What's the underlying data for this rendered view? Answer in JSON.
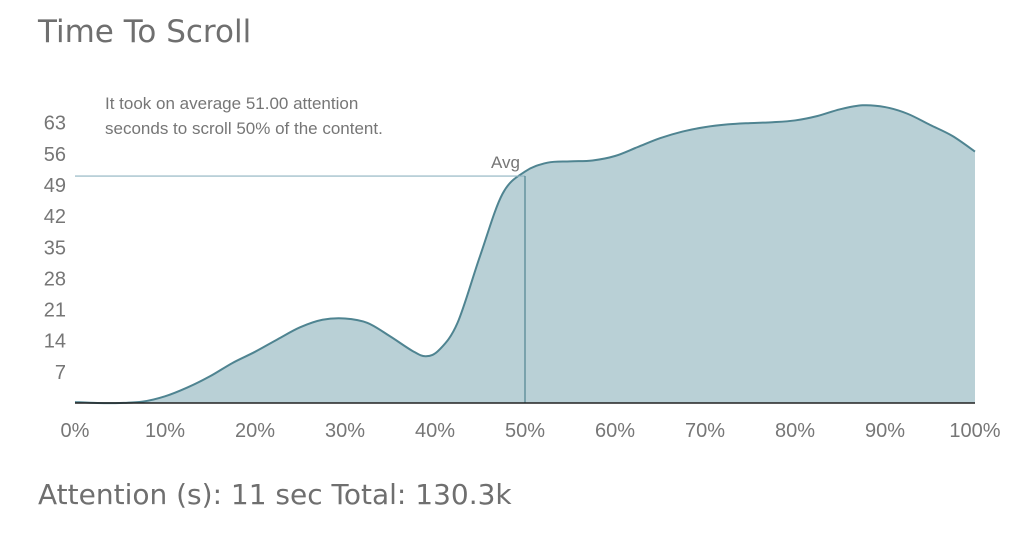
{
  "title": "Time To Scroll",
  "annotation": {
    "line1": "It took on average 51.00 attention",
    "line2": "seconds to scroll 50% of the content."
  },
  "avg_label": "Avg",
  "footer": "Attention (s): 11 sec Total: 130.3k",
  "colors": {
    "fill": "#b9d0d6",
    "line": "#4f8491",
    "avg_line": "#8fb3c1",
    "text": "#767676"
  },
  "chart_data": {
    "type": "area",
    "title": "Time To Scroll",
    "x_tick_labels": [
      "0%",
      "10%",
      "20%",
      "30%",
      "40%",
      "50%",
      "60%",
      "70%",
      "80%",
      "90%",
      "100%"
    ],
    "y_tick_labels": [
      "7",
      "14",
      "21",
      "28",
      "35",
      "42",
      "49",
      "56",
      "63"
    ],
    "y_ticks": [
      7,
      14,
      21,
      28,
      35,
      42,
      49,
      56,
      63
    ],
    "xlim": [
      0,
      100
    ],
    "ylim": [
      0,
      70
    ],
    "grid": false,
    "series": [
      {
        "x": [
          0,
          2.5,
          5,
          7.5,
          10,
          12.5,
          15,
          17.5,
          20,
          22.5,
          25,
          27.5,
          30,
          32.5,
          35,
          37.5,
          39,
          40.5,
          42.5,
          45,
          47.5,
          50,
          52.5,
          55,
          57.5,
          60,
          62.5,
          65,
          67.5,
          70,
          72.5,
          75,
          77.5,
          80,
          82.5,
          85,
          87.5,
          90,
          92.5,
          95,
          97.5,
          100
        ],
        "y": [
          0.2,
          0,
          0,
          0.3,
          1.5,
          3.5,
          6,
          9,
          11.5,
          14.3,
          17,
          18.7,
          19,
          18,
          15,
          11.7,
          10.5,
          12,
          18,
          33,
          47,
          52,
          54,
          54.3,
          54.5,
          55.5,
          57.5,
          59.5,
          61,
          62,
          62.6,
          62.9,
          63.1,
          63.5,
          64.5,
          66,
          66.9,
          66.5,
          65,
          62.5,
          60,
          56.5
        ]
      }
    ],
    "average": {
      "x": 50,
      "y": 51
    }
  }
}
